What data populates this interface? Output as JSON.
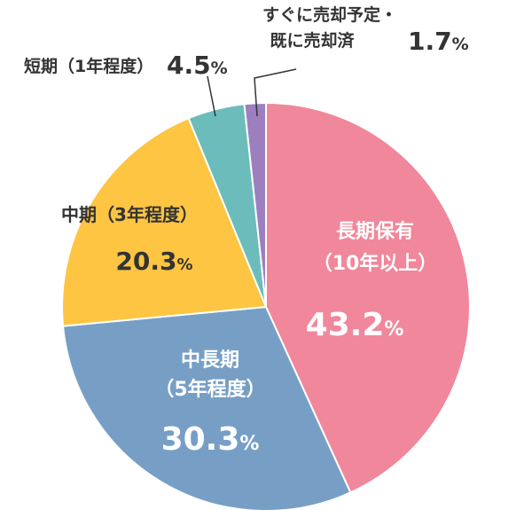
{
  "chart_data": {
    "type": "pie",
    "slices": [
      {
        "name": "長期保有",
        "sub": "（10年以上）",
        "value": 43.2,
        "value_text": "43.2",
        "color": "#f0879b"
      },
      {
        "name": "中長期",
        "sub": "（5年程度）",
        "value": 30.3,
        "value_text": "30.3",
        "color": "#779fc6"
      },
      {
        "name": "中期（3年程度）",
        "sub": "",
        "value": 20.3,
        "value_text": "20.3",
        "color": "#fdc542"
      },
      {
        "name": "短期（1年程度）",
        "sub": "",
        "value": 4.5,
        "value_text": "4.5",
        "color": "#6cbcbc"
      },
      {
        "name": "すぐに売却予定・",
        "sub": "既に売却済",
        "value": 1.7,
        "value_text": "1.7",
        "color": "#9d7fc0"
      }
    ],
    "unit": "%",
    "start": "12 o'clock",
    "direction": "clockwise"
  }
}
